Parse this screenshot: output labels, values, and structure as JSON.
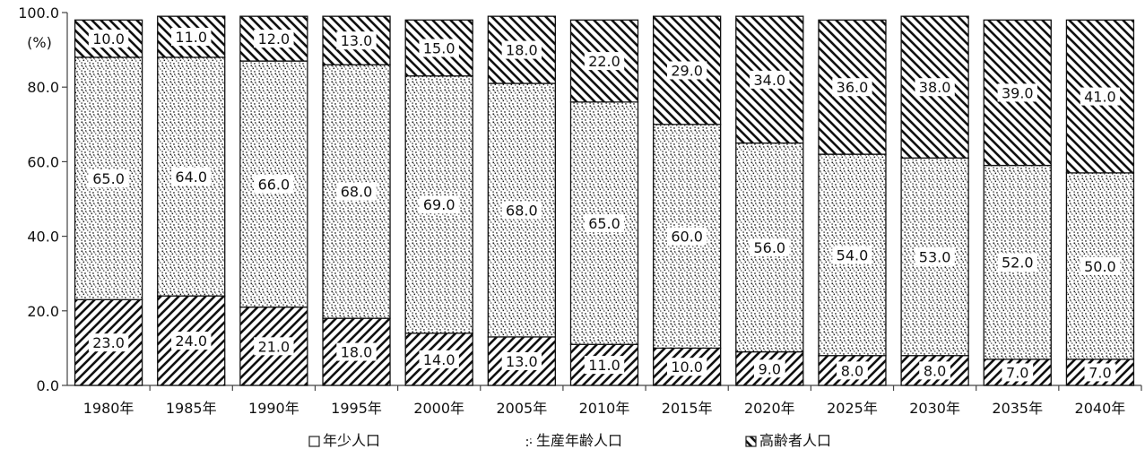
{
  "chart_data": {
    "type": "bar",
    "stacked": true,
    "y_unit_label": "(%)",
    "ylim": [
      0,
      100
    ],
    "y_ticks": [
      "0.0",
      "20.0",
      "40.0",
      "60.0",
      "80.0",
      "100.0"
    ],
    "grid": false,
    "legend_position": "bottom",
    "categories": [
      "1980年",
      "1985年",
      "1990年",
      "1995年",
      "2000年",
      "2005年",
      "2010年",
      "2015年",
      "2020年",
      "2025年",
      "2030年",
      "2035年",
      "2040年"
    ],
    "series": [
      {
        "name": "年少人口",
        "pattern": "hatch-forward",
        "values": [
          23.0,
          24.0,
          21.0,
          18.0,
          14.0,
          13.0,
          11.0,
          10.0,
          9.0,
          8.0,
          8.0,
          7.0,
          7.0
        ],
        "labels": [
          "23.0",
          "24.0",
          "21.0",
          "18.0",
          "14.0",
          "13.0",
          "11.0",
          "10.0",
          "9.0",
          "8.0",
          "8.0",
          "7.0",
          "7.0"
        ]
      },
      {
        "name": "生産年齢人口",
        "pattern": "dots",
        "values": [
          65.0,
          64.0,
          66.0,
          68.0,
          69.0,
          68.0,
          65.0,
          60.0,
          56.0,
          54.0,
          53.0,
          52.0,
          50.0
        ],
        "labels": [
          "65.0",
          "64.0",
          "66.0",
          "68.0",
          "69.0",
          "68.0",
          "65.0",
          "60.0",
          "56.0",
          "54.0",
          "53.0",
          "52.0",
          "50.0"
        ]
      },
      {
        "name": "高齢者人口",
        "pattern": "hatch-backward",
        "values": [
          10.0,
          11.0,
          12.0,
          13.0,
          15.0,
          18.0,
          22.0,
          29.0,
          34.0,
          36.0,
          38.0,
          39.0,
          41.0
        ],
        "labels": [
          "10.0",
          "11.0",
          "12.0",
          "13.0",
          "15.0",
          "18.0",
          "22.0",
          "29.0",
          "34.0",
          "36.0",
          "38.0",
          "39.0",
          "41.0"
        ]
      }
    ]
  }
}
